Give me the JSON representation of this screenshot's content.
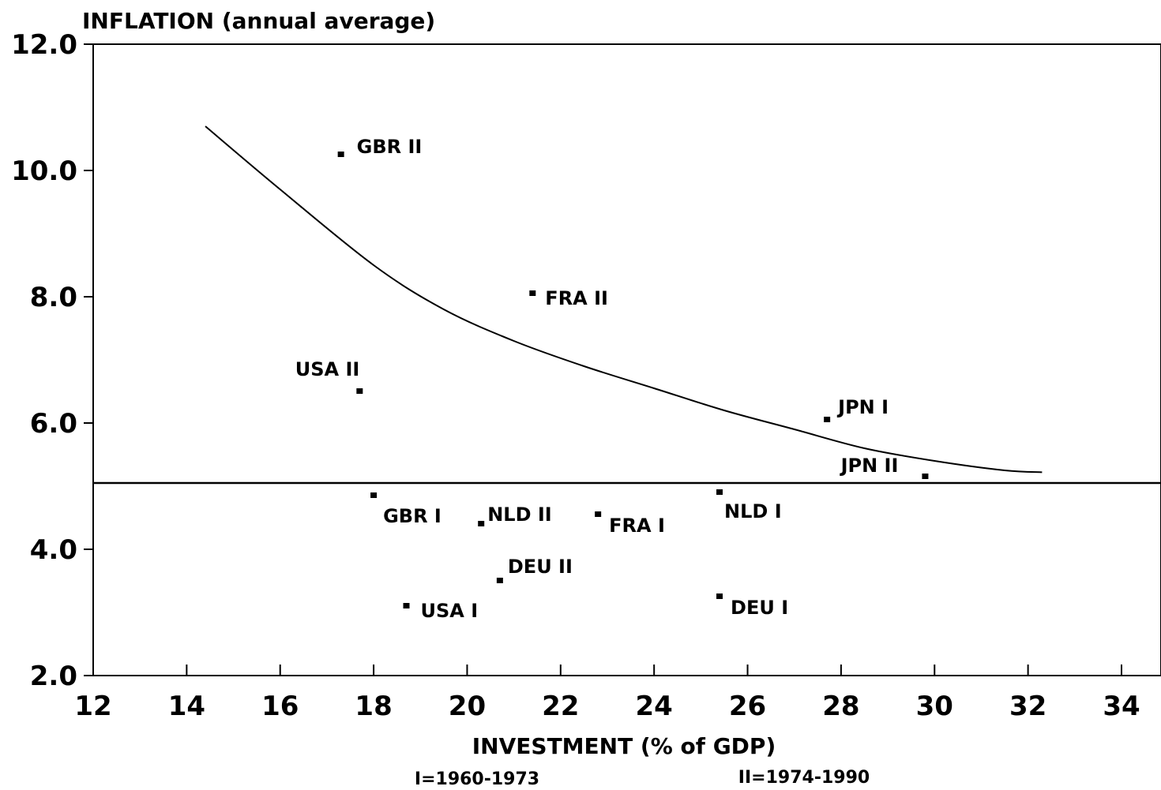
{
  "chart_data": {
    "type": "scatter",
    "ylabel": "INFLATION (annual average)",
    "xlabel": "INVESTMENT (% of GDP)",
    "xlim": [
      12,
      34
    ],
    "ylim": [
      2.0,
      12.0
    ],
    "x_ticks": [
      "12",
      "14",
      "16",
      "18",
      "20",
      "22",
      "24",
      "26",
      "28",
      "30",
      "32",
      "34"
    ],
    "y_ticks": [
      "2.0",
      "4.0",
      "6.0",
      "8.0",
      "10.0",
      "12.0"
    ],
    "points": [
      {
        "label": "GBR II",
        "x": 17.3,
        "y": 10.25
      },
      {
        "label": "FRA II",
        "x": 21.4,
        "y": 8.05
      },
      {
        "label": "USA II",
        "x": 17.7,
        "y": 6.5
      },
      {
        "label": "JPN I",
        "x": 27.7,
        "y": 6.05
      },
      {
        "label": "JPN II",
        "x": 29.8,
        "y": 5.15
      },
      {
        "label": "GBR I",
        "x": 18.0,
        "y": 4.85
      },
      {
        "label": "NLD II",
        "x": 20.3,
        "y": 4.4
      },
      {
        "label": "FRA I",
        "x": 22.8,
        "y": 4.55
      },
      {
        "label": "NLD I",
        "x": 25.4,
        "y": 4.9
      },
      {
        "label": "DEU II",
        "x": 20.7,
        "y": 3.5
      },
      {
        "label": "USA I",
        "x": 18.7,
        "y": 3.1
      },
      {
        "label": "DEU I",
        "x": 25.4,
        "y": 3.25
      }
    ],
    "curve": {
      "x": [
        14.4,
        16.0,
        18.0,
        19.5,
        21.0,
        22.5,
        24.0,
        25.5,
        27.0,
        28.5,
        30.0,
        31.5,
        32.3
      ],
      "y": [
        10.7,
        9.7,
        8.5,
        7.8,
        7.3,
        6.9,
        6.55,
        6.2,
        5.9,
        5.6,
        5.4,
        5.25,
        5.22
      ]
    },
    "reference_line_y": 5.05,
    "notes": [
      "I=1960-1973",
      "II=1974-1990"
    ]
  }
}
